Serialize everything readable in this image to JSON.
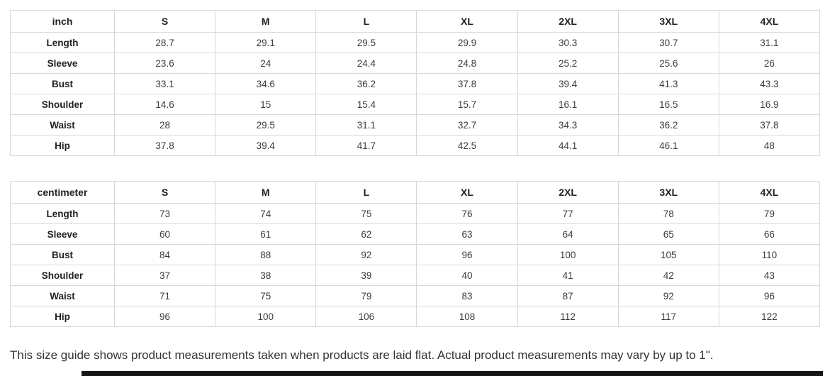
{
  "page": {
    "footer_note": "This size guide shows product measurements taken when products are laid flat. Actual product measurements may vary by up to 1\".",
    "colors": {
      "background": "#ffffff",
      "table_border": "#d8d8d8",
      "header_text": "#222222",
      "cell_text": "#3c3c3c",
      "footer_text": "#333333",
      "bottom_bar": "#161616"
    }
  },
  "tables": [
    {
      "unit_label": "inch",
      "size_headers": [
        "S",
        "M",
        "L",
        "XL",
        "2XL",
        "3XL",
        "4XL"
      ],
      "rows": [
        {
          "label": "Length",
          "values": [
            "28.7",
            "29.1",
            "29.5",
            "29.9",
            "30.3",
            "30.7",
            "31.1"
          ]
        },
        {
          "label": "Sleeve",
          "values": [
            "23.6",
            "24",
            "24.4",
            "24.8",
            "25.2",
            "25.6",
            "26"
          ]
        },
        {
          "label": "Bust",
          "values": [
            "33.1",
            "34.6",
            "36.2",
            "37.8",
            "39.4",
            "41.3",
            "43.3"
          ]
        },
        {
          "label": "Shoulder",
          "values": [
            "14.6",
            "15",
            "15.4",
            "15.7",
            "16.1",
            "16.5",
            "16.9"
          ]
        },
        {
          "label": "Waist",
          "values": [
            "28",
            "29.5",
            "31.1",
            "32.7",
            "34.3",
            "36.2",
            "37.8"
          ]
        },
        {
          "label": "Hip",
          "values": [
            "37.8",
            "39.4",
            "41.7",
            "42.5",
            "44.1",
            "46.1",
            "48"
          ]
        }
      ]
    },
    {
      "unit_label": "centimeter",
      "size_headers": [
        "S",
        "M",
        "L",
        "XL",
        "2XL",
        "3XL",
        "4XL"
      ],
      "rows": [
        {
          "label": "Length",
          "values": [
            "73",
            "74",
            "75",
            "76",
            "77",
            "78",
            "79"
          ]
        },
        {
          "label": "Sleeve",
          "values": [
            "60",
            "61",
            "62",
            "63",
            "64",
            "65",
            "66"
          ]
        },
        {
          "label": "Bust",
          "values": [
            "84",
            "88",
            "92",
            "96",
            "100",
            "105",
            "110"
          ]
        },
        {
          "label": "Shoulder",
          "values": [
            "37",
            "38",
            "39",
            "40",
            "41",
            "42",
            "43"
          ]
        },
        {
          "label": "Waist",
          "values": [
            "71",
            "75",
            "79",
            "83",
            "87",
            "92",
            "96"
          ]
        },
        {
          "label": "Hip",
          "values": [
            "96",
            "100",
            "106",
            "108",
            "112",
            "117",
            "122"
          ]
        }
      ]
    }
  ]
}
